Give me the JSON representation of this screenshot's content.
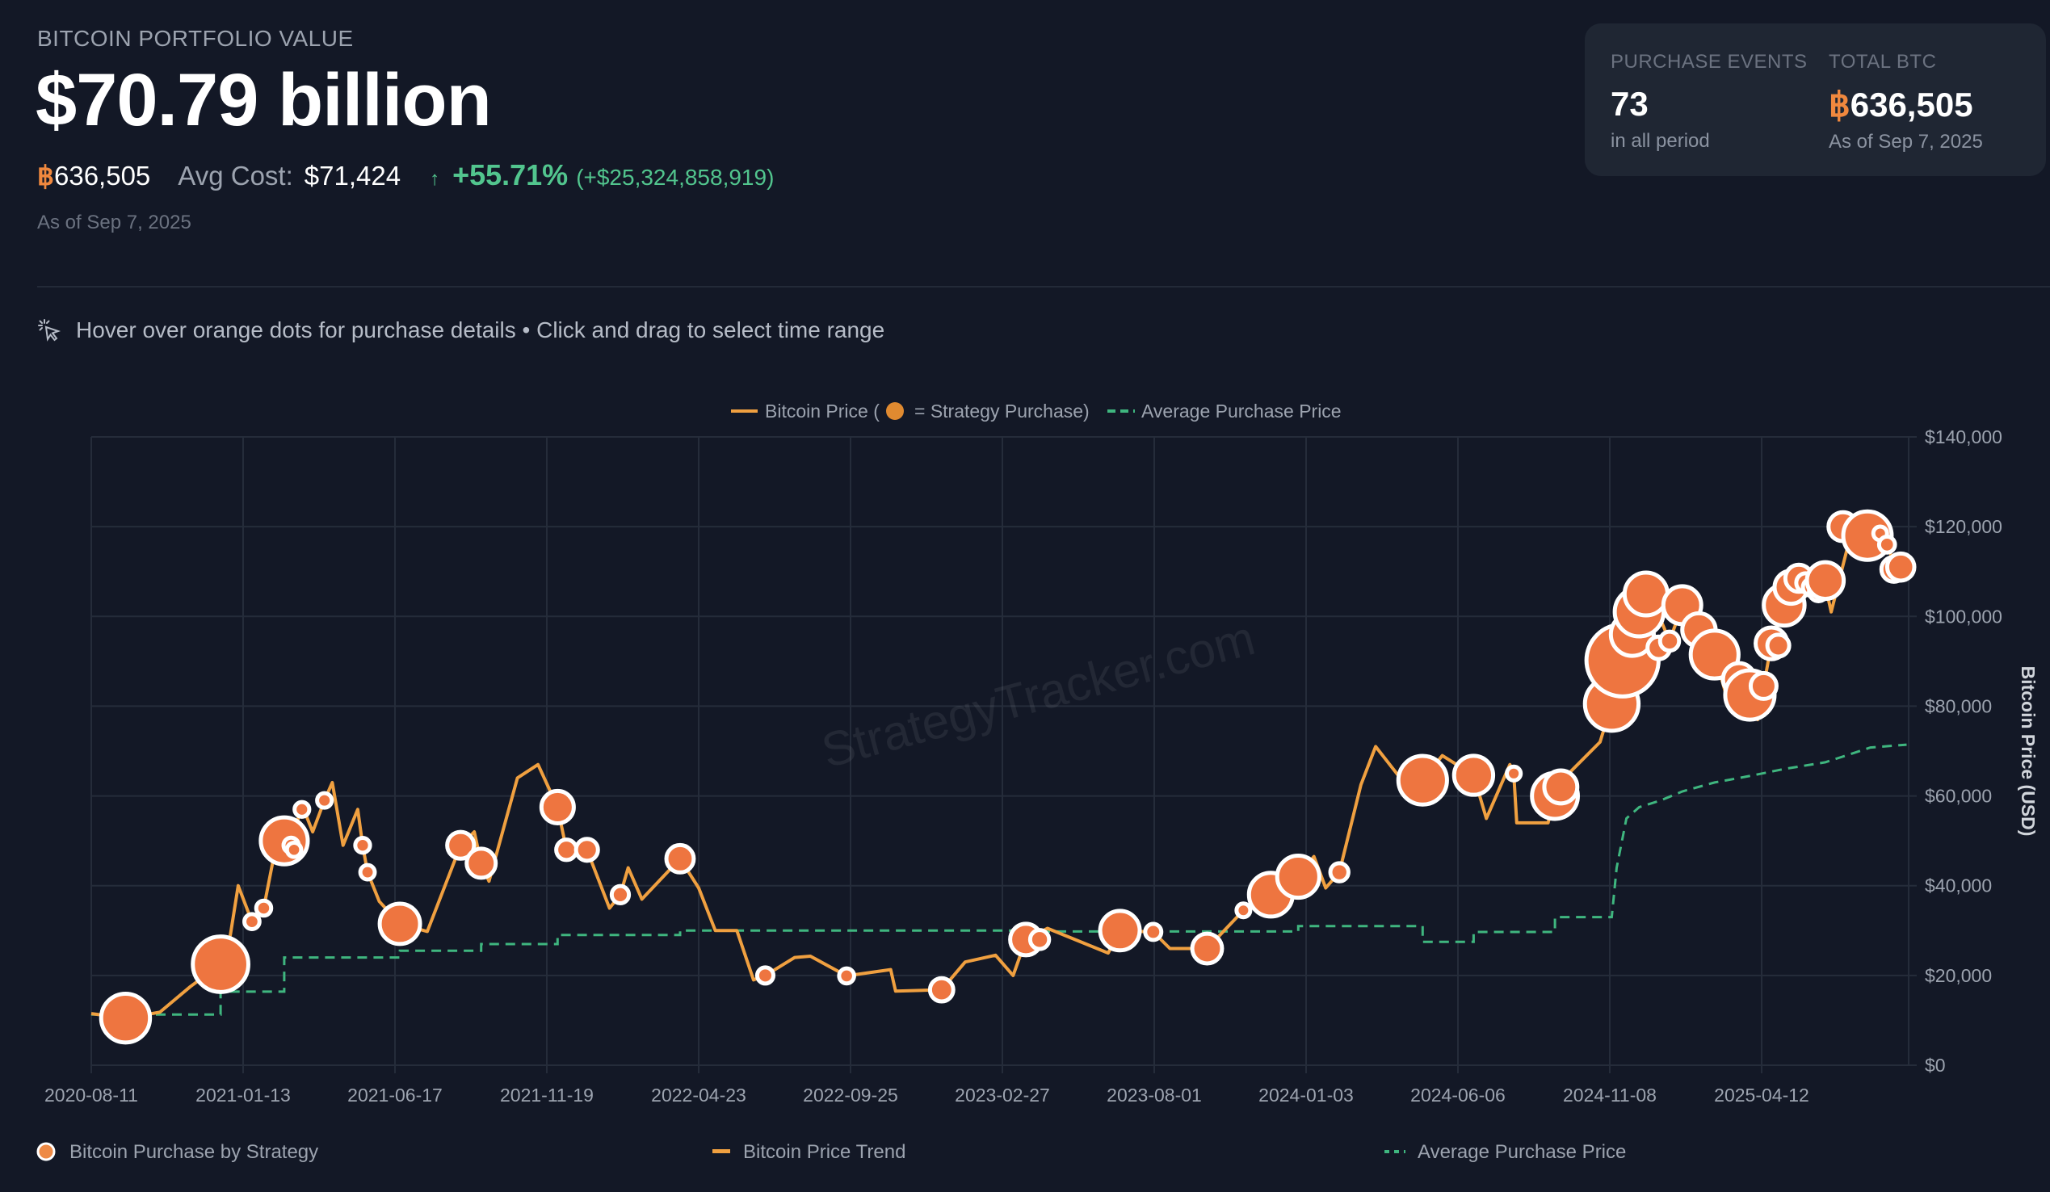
{
  "header": {
    "title": "BITCOIN PORTFOLIO VALUE",
    "value": "$70.79 billion",
    "btc_symbol": "฿",
    "btc_amount": "636,505",
    "avg_cost_label": "Avg Cost:",
    "avg_cost": "$71,424",
    "change_arrow": "↑",
    "change_pct": "+55.71%",
    "change_abs": "(+$25,324,858,919)",
    "as_of": "As of Sep 7, 2025"
  },
  "card": {
    "events_label": "PURCHASE EVENTS",
    "events_value": "73",
    "events_sub": "in all period",
    "btc_label": "TOTAL BTC",
    "btc_symbol": "฿",
    "btc_value": "636,505",
    "btc_sub": "As of Sep 7, 2025"
  },
  "hint": {
    "icon": "cursor-click-icon",
    "text": "Hover over orange dots for purchase details • Click and drag to select time range"
  },
  "colors": {
    "background": "#131826",
    "price_line": "#f0a040",
    "purchase_dot": "#ee7540",
    "avg_line": "#3fb67f",
    "grid": "#252c3a",
    "axis_text": "#9ca3af"
  },
  "chart_data": {
    "type": "line",
    "watermark": "StrategyTracker.com",
    "top_legend": {
      "price": "Bitcoin Price (",
      "price_suffix": "= Strategy Purchase)",
      "avg": "Average Purchase Price"
    },
    "bottom_legend": [
      "Bitcoin Purchase by Strategy",
      "Bitcoin Price Trend",
      "Average Purchase Price"
    ],
    "ylabel": "Bitcoin Price (USD)",
    "ylim": [
      0,
      140000
    ],
    "yticks": [
      0,
      20000,
      40000,
      60000,
      80000,
      100000,
      120000,
      140000
    ],
    "ytick_labels": [
      "$0",
      "$20,000",
      "$40,000",
      "$60,000",
      "$80,000",
      "$100,000",
      "$120,000",
      "$140,000"
    ],
    "xlim": [
      "2020-08-11",
      "2025-09-07"
    ],
    "xtick_labels": [
      "2020-08-11",
      "2021-01-13",
      "2021-06-17",
      "2021-11-19",
      "2022-04-23",
      "2022-09-25",
      "2023-02-27",
      "2023-08-01",
      "2024-01-03",
      "2024-06-06",
      "2024-11-08",
      "2025-04-12"
    ],
    "grid": true,
    "y_axis_position": "right",
    "legend_position": "top and bottom",
    "series": [
      {
        "name": "Bitcoin Price Trend",
        "style": "solid",
        "points": [
          [
            "2020-08-11",
            11500
          ],
          [
            "2020-09-15",
            10500
          ],
          [
            "2020-10-20",
            11800
          ],
          [
            "2020-11-20",
            17500
          ],
          [
            "2020-12-21",
            22500
          ],
          [
            "2020-12-31",
            29000
          ],
          [
            "2021-01-08",
            40000
          ],
          [
            "2021-01-22",
            32000
          ],
          [
            "2021-02-03",
            35000
          ],
          [
            "2021-02-21",
            55000
          ],
          [
            "2021-02-28",
            47000
          ],
          [
            "2021-03-14",
            58000
          ],
          [
            "2021-03-25",
            52000
          ],
          [
            "2021-04-06",
            59000
          ],
          [
            "2021-04-14",
            63000
          ],
          [
            "2021-04-25",
            49000
          ],
          [
            "2021-05-10",
            57000
          ],
          [
            "2021-05-15",
            49000
          ],
          [
            "2021-05-20",
            43000
          ],
          [
            "2021-06-01",
            36500
          ],
          [
            "2021-06-22",
            31500
          ],
          [
            "2021-07-20",
            29800
          ],
          [
            "2021-08-23",
            49000
          ],
          [
            "2021-09-06",
            52000
          ],
          [
            "2021-09-13",
            45000
          ],
          [
            "2021-09-21",
            41000
          ],
          [
            "2021-10-20",
            64000
          ],
          [
            "2021-11-10",
            67000
          ],
          [
            "2021-11-30",
            57500
          ],
          [
            "2021-12-09",
            48000
          ],
          [
            "2021-12-30",
            48000
          ],
          [
            "2022-01-22",
            35000
          ],
          [
            "2022-02-02",
            38000
          ],
          [
            "2022-02-10",
            44000
          ],
          [
            "2022-02-24",
            37000
          ],
          [
            "2022-04-04",
            46000
          ],
          [
            "2022-04-23",
            39500
          ],
          [
            "2022-05-10",
            30000
          ],
          [
            "2022-06-01",
            30000
          ],
          [
            "2022-06-18",
            19000
          ],
          [
            "2022-06-30",
            20000
          ],
          [
            "2022-07-30",
            24000
          ],
          [
            "2022-08-15",
            24300
          ],
          [
            "2022-09-21",
            19900
          ],
          [
            "2022-11-05",
            21300
          ],
          [
            "2022-11-10",
            16500
          ],
          [
            "2022-12-27",
            16800
          ],
          [
            "2023-01-20",
            23000
          ],
          [
            "2023-02-20",
            24500
          ],
          [
            "2023-03-10",
            20000
          ],
          [
            "2023-03-23",
            28000
          ],
          [
            "2023-04-14",
            30500
          ],
          [
            "2023-06-15",
            25000
          ],
          [
            "2023-06-27",
            30000
          ],
          [
            "2023-07-31",
            29700
          ],
          [
            "2023-08-17",
            26000
          ],
          [
            "2023-09-24",
            26000
          ],
          [
            "2023-10-31",
            34500
          ],
          [
            "2023-11-28",
            38000
          ],
          [
            "2023-12-26",
            42000
          ],
          [
            "2024-01-11",
            46500
          ],
          [
            "2024-01-23",
            39500
          ],
          [
            "2024-02-06",
            43000
          ],
          [
            "2024-02-28",
            62500
          ],
          [
            "2024-03-14",
            71000
          ],
          [
            "2024-04-17",
            61500
          ],
          [
            "2024-05-01",
            63500
          ],
          [
            "2024-05-21",
            69000
          ],
          [
            "2024-06-22",
            64600
          ],
          [
            "2024-07-05",
            55000
          ],
          [
            "2024-07-29",
            67000
          ],
          [
            "2024-08-02",
            65000
          ],
          [
            "2024-08-05",
            54000
          ],
          [
            "2024-09-06",
            54000
          ],
          [
            "2024-09-13",
            60000
          ],
          [
            "2024-09-27",
            65000
          ],
          [
            "2024-10-29",
            72000
          ],
          [
            "2024-11-10",
            80500
          ],
          [
            "2024-11-21",
            90200
          ],
          [
            "2024-12-08",
            101000
          ],
          [
            "2024-12-17",
            106000
          ],
          [
            "2025-01-08",
            94500
          ],
          [
            "2025-01-21",
            102500
          ],
          [
            "2025-02-07",
            97000
          ],
          [
            "2025-02-23",
            91500
          ],
          [
            "2025-03-10",
            80000
          ],
          [
            "2025-03-31",
            82500
          ],
          [
            "2025-04-08",
            77000
          ],
          [
            "2025-04-22",
            94000
          ],
          [
            "2025-05-05",
            102500
          ],
          [
            "2025-05-22",
            110000
          ],
          [
            "2025-06-16",
            107000
          ],
          [
            "2025-06-22",
            101000
          ],
          [
            "2025-07-14",
            120000
          ],
          [
            "2025-07-29",
            118000
          ],
          [
            "2025-08-14",
            122000
          ],
          [
            "2025-08-25",
            110500
          ],
          [
            "2025-09-01",
            108500
          ],
          [
            "2025-09-07",
            111000
          ]
        ]
      },
      {
        "name": "Average Purchase Price",
        "style": "dashed",
        "points": [
          [
            "2020-08-11",
            11300
          ],
          [
            "2020-12-21",
            11300
          ],
          [
            "2020-12-21",
            16400
          ],
          [
            "2021-02-24",
            16400
          ],
          [
            "2021-02-24",
            24000
          ],
          [
            "2021-06-22",
            24000
          ],
          [
            "2021-06-22",
            25500
          ],
          [
            "2021-09-13",
            25500
          ],
          [
            "2021-09-13",
            27000
          ],
          [
            "2021-11-30",
            27000
          ],
          [
            "2021-11-30",
            29000
          ],
          [
            "2022-04-04",
            29000
          ],
          [
            "2022-04-04",
            30000
          ],
          [
            "2023-03-23",
            30000
          ],
          [
            "2023-03-23",
            29800
          ],
          [
            "2023-12-26",
            29800
          ],
          [
            "2023-12-26",
            31000
          ],
          [
            "2024-05-01",
            31000
          ],
          [
            "2024-05-01",
            27500
          ],
          [
            "2024-06-22",
            27500
          ],
          [
            "2024-06-22",
            29700
          ],
          [
            "2024-09-13",
            29700
          ],
          [
            "2024-09-13",
            33000
          ],
          [
            "2024-11-10",
            33000
          ],
          [
            "2024-11-15",
            44000
          ],
          [
            "2024-11-25",
            55000
          ],
          [
            "2024-12-08",
            57500
          ],
          [
            "2024-12-30",
            59000
          ],
          [
            "2025-01-21",
            61000
          ],
          [
            "2025-02-23",
            63000
          ],
          [
            "2025-04-01",
            64500
          ],
          [
            "2025-05-05",
            66000
          ],
          [
            "2025-06-16",
            67500
          ],
          [
            "2025-07-14",
            69500
          ],
          [
            "2025-08-01",
            70800
          ],
          [
            "2025-09-07",
            71424
          ]
        ]
      }
    ],
    "purchases": [
      [
        "2020-09-15",
        10500,
        21454
      ],
      [
        "2020-12-21",
        22500,
        29646
      ],
      [
        "2021-01-22",
        32000,
        314
      ],
      [
        "2021-02-03",
        35000,
        295
      ],
      [
        "2021-02-24",
        50000,
        19452
      ],
      [
        "2021-03-03",
        49000,
        328
      ],
      [
        "2021-03-06",
        48000,
        205
      ],
      [
        "2021-03-14",
        57000,
        262
      ],
      [
        "2021-04-06",
        59000,
        253
      ],
      [
        "2021-05-15",
        49000,
        271
      ],
      [
        "2021-05-20",
        43000,
        229
      ],
      [
        "2021-06-22",
        31500,
        13005
      ],
      [
        "2021-08-23",
        49000,
        3907
      ],
      [
        "2021-09-13",
        45000,
        5050
      ],
      [
        "2021-11-30",
        57500,
        7002
      ],
      [
        "2021-12-09",
        48000,
        1434
      ],
      [
        "2021-12-30",
        48000,
        1914
      ],
      [
        "2022-02-02",
        38000,
        660
      ],
      [
        "2022-04-04",
        46000,
        4167
      ],
      [
        "2022-06-30",
        20000,
        480
      ],
      [
        "2022-09-21",
        19900,
        301
      ],
      [
        "2022-12-27",
        16800,
        2395
      ],
      [
        "2023-03-23",
        28000,
        6455
      ],
      [
        "2023-04-06",
        28000,
        1045
      ],
      [
        "2023-06-27",
        30000,
        12333
      ],
      [
        "2023-07-31",
        29700,
        467
      ],
      [
        "2023-09-24",
        26000,
        5445
      ],
      [
        "2023-10-31",
        34500,
        155
      ],
      [
        "2023-11-28",
        38000,
        16130
      ],
      [
        "2023-12-26",
        42000,
        14620
      ],
      [
        "2024-02-06",
        43000,
        850
      ],
      [
        "2024-05-01",
        63500,
        21245
      ],
      [
        "2024-06-22",
        64600,
        11931
      ],
      [
        "2024-08-02",
        65000,
        169
      ],
      [
        "2024-09-13",
        60000,
        18300
      ],
      [
        "2024-09-19",
        62000,
        7420
      ],
      [
        "2024-11-10",
        80500,
        27200
      ],
      [
        "2024-11-21",
        90200,
        55500
      ],
      [
        "2024-12-01",
        96000,
        15400
      ],
      [
        "2024-12-08",
        101000,
        21550
      ],
      [
        "2024-12-15",
        105000,
        15350
      ],
      [
        "2024-12-28",
        93000,
        2138
      ],
      [
        "2025-01-08",
        94500,
        1070
      ],
      [
        "2025-01-21",
        102500,
        11000
      ],
      [
        "2025-02-07",
        97000,
        7633
      ],
      [
        "2025-02-23",
        91500,
        20356
      ],
      [
        "2025-03-20",
        86000,
        6911
      ],
      [
        "2025-03-31",
        82500,
        22048
      ],
      [
        "2025-04-14",
        84500,
        3459
      ],
      [
        "2025-04-22",
        94000,
        6556
      ],
      [
        "2025-04-29",
        93500,
        1895
      ],
      [
        "2025-05-05",
        102500,
        13390
      ],
      [
        "2025-05-12",
        106500,
        7390
      ],
      [
        "2025-05-20",
        108500,
        4020
      ],
      [
        "2025-05-27",
        107500,
        1045
      ],
      [
        "2025-06-02",
        106500,
        705
      ],
      [
        "2025-06-09",
        105500,
        1045
      ],
      [
        "2025-06-16",
        108000,
        10100
      ],
      [
        "2025-07-04",
        120000,
        4980
      ],
      [
        "2025-07-29",
        118000,
        21021
      ],
      [
        "2025-08-11",
        118500,
        155
      ],
      [
        "2025-08-18",
        116000,
        430
      ],
      [
        "2025-08-25",
        110500,
        3081
      ],
      [
        "2025-09-01",
        111000,
        4048
      ]
    ]
  }
}
